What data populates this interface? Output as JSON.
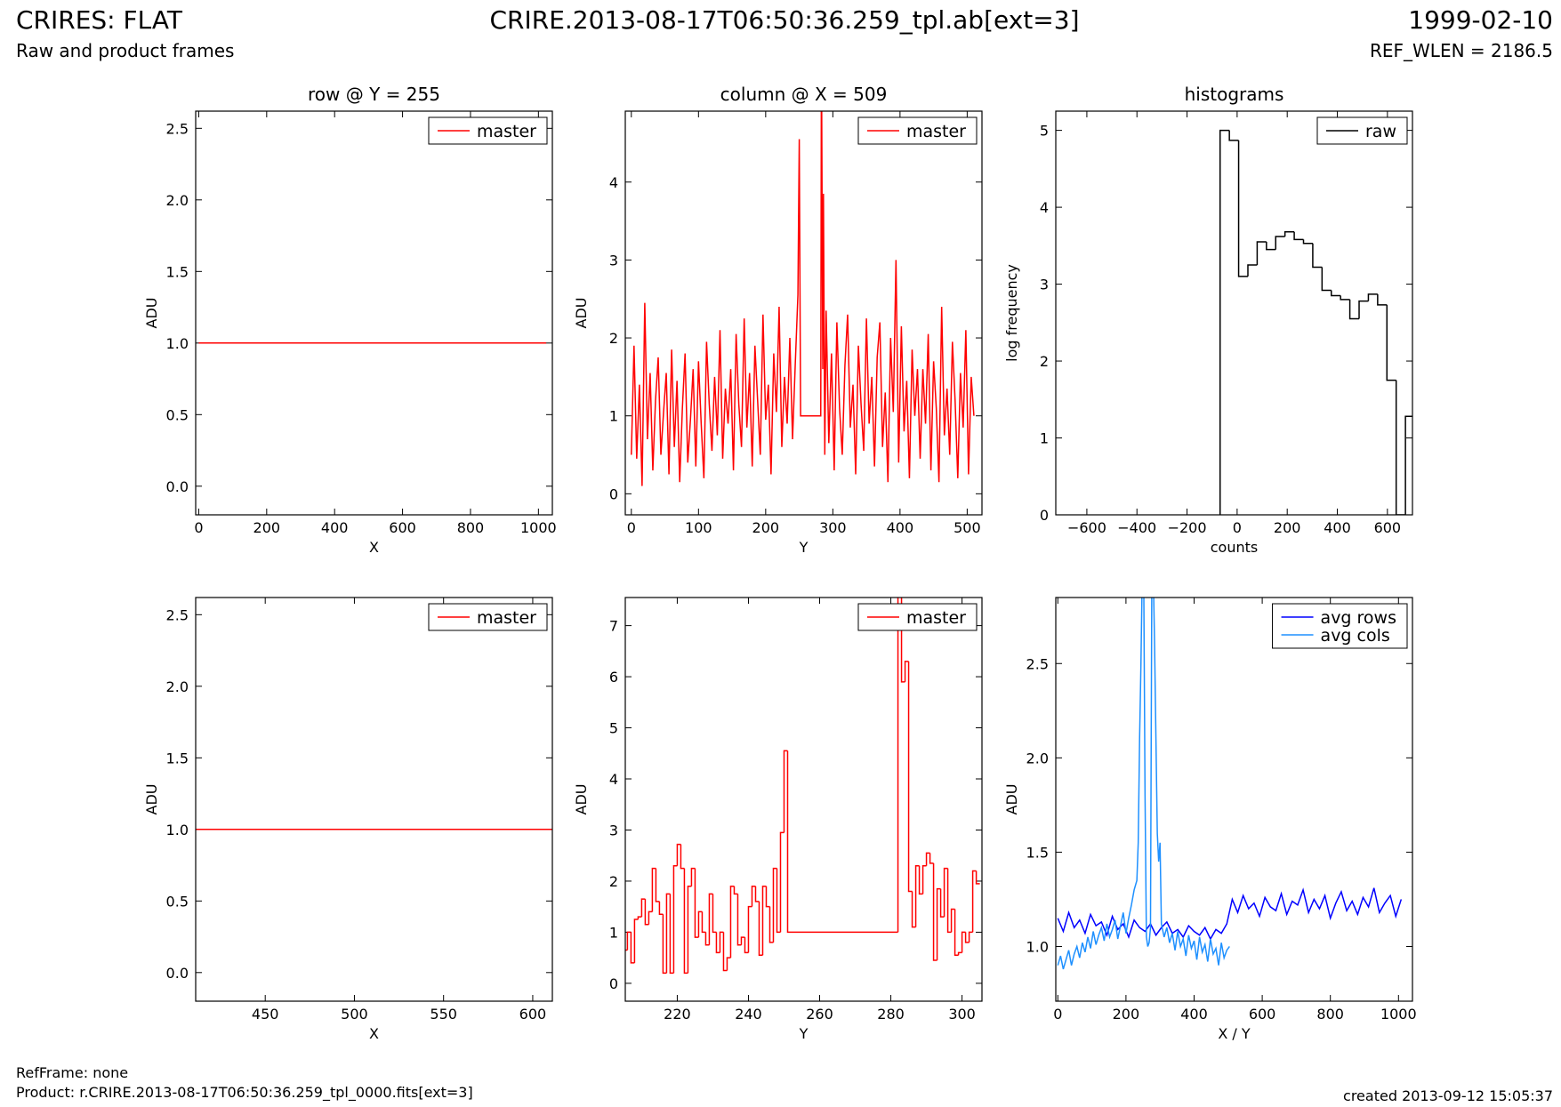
{
  "header": {
    "title": "CRIRES: FLAT",
    "subtitle": "Raw and product frames",
    "file": "CRIRE.2013-08-17T06:50:36.259_tpl.ab[ext=3]",
    "date": "1999-02-10",
    "ref_wlen": "REF_WLEN = 2186.5"
  },
  "footer": {
    "ref_frame": "RefFrame: none",
    "product": "Product: r.CRIRE.2013-08-17T06:50:36.259_tpl_0000.fits[ext=3]",
    "created": "created 2013-09-12 15:05:37"
  },
  "chart_data": [
    {
      "type": "line",
      "title": "row @ Y = 255",
      "xlabel": "X",
      "ylabel": "ADU",
      "legend": "upper right",
      "xlim": [
        -9,
        1041
      ],
      "ylim": [
        -0.2,
        2.62
      ],
      "xticks": [
        0,
        200,
        400,
        600,
        800,
        1000
      ],
      "yticks": [
        {
          "value": 0,
          "label": "0.0"
        },
        {
          "value": 0.5,
          "label": "0.5"
        },
        {
          "value": 1,
          "label": "1.0"
        },
        {
          "value": 1.5,
          "label": "1.5"
        },
        {
          "value": 2,
          "label": "2.0"
        },
        {
          "value": 2.5,
          "label": "2.5"
        }
      ],
      "series": [
        {
          "name": "master",
          "color": "#ff0000",
          "x": [
            0,
            1023
          ],
          "values": [
            1,
            1
          ]
        }
      ]
    },
    {
      "type": "line",
      "title": "column @ X = 509",
      "xlabel": "Y",
      "ylabel": "ADU",
      "legend": "upper right",
      "xlim": [
        -9,
        522
      ],
      "ylim": [
        -0.27,
        4.91
      ],
      "xticks": [
        0,
        100,
        200,
        300,
        400,
        500
      ],
      "yticks": [
        0,
        1,
        2,
        3,
        4
      ],
      "series": [
        {
          "name": "master",
          "color": "#ff0000",
          "x": [
            0,
            4,
            8,
            12,
            16,
            20,
            24,
            28,
            32,
            36,
            40,
            44,
            48,
            52,
            56,
            60,
            64,
            68,
            72,
            76,
            80,
            84,
            88,
            92,
            96,
            100,
            104,
            108,
            112,
            116,
            120,
            124,
            128,
            132,
            136,
            140,
            144,
            148,
            152,
            156,
            160,
            164,
            168,
            172,
            176,
            180,
            184,
            188,
            192,
            196,
            200,
            204,
            208,
            212,
            216,
            220,
            224,
            228,
            232,
            236,
            240,
            244,
            248,
            250,
            252,
            282,
            283,
            285,
            286,
            288,
            290,
            294,
            298,
            302,
            306,
            310,
            314,
            318,
            322,
            326,
            330,
            334,
            338,
            342,
            346,
            350,
            354,
            358,
            362,
            366,
            370,
            374,
            378,
            382,
            386,
            390,
            394,
            398,
            402,
            406,
            410,
            414,
            418,
            422,
            426,
            430,
            434,
            438,
            442,
            446,
            450,
            454,
            458,
            462,
            466,
            470,
            474,
            478,
            482,
            486,
            490,
            494,
            498,
            502,
            506,
            510
          ],
          "values": [
            0.5,
            1.9,
            0.45,
            1.4,
            0.1,
            2.45,
            0.7,
            1.55,
            0.3,
            1.2,
            1.75,
            0.5,
            1.05,
            1.55,
            0.25,
            1.85,
            0.6,
            1.45,
            0.15,
            1.1,
            1.8,
            0.4,
            0.95,
            1.6,
            0.35,
            1.7,
            0.9,
            0.2,
            1.95,
            1.15,
            0.55,
            1.5,
            0.75,
            2.1,
            0.45,
            1.35,
            0.9,
            1.6,
            0.3,
            2.05,
            1.15,
            0.6,
            2.25,
            0.85,
            1.55,
            0.35,
            1.9,
            1.2,
            0.5,
            2.3,
            0.95,
            1.4,
            0.25,
            1.8,
            1.05,
            2.4,
            0.6,
            1.5,
            0.9,
            2.0,
            0.7,
            1.65,
            2.55,
            4.55,
            1.0,
            1.0,
            5.8,
            1.6,
            3.85,
            0.5,
            2.35,
            0.65,
            1.8,
            0.3,
            2.2,
            1.1,
            0.5,
            1.65,
            2.3,
            0.85,
            1.4,
            0.25,
            1.9,
            1.15,
            0.55,
            2.25,
            0.9,
            1.5,
            0.35,
            1.75,
            2.2,
            0.6,
            1.3,
            0.15,
            2.0,
            1.05,
            3.0,
            0.4,
            2.15,
            0.8,
            1.45,
            0.2,
            1.85,
            1.0,
            1.6,
            0.45,
            1.6,
            0.9,
            2.05,
            0.3,
            1.7,
            1.1,
            0.15,
            2.4,
            0.75,
            1.35,
            0.5,
            1.95,
            1.2,
            0.2,
            1.55,
            0.85,
            2.1,
            0.25,
            1.5,
            1.0
          ]
        }
      ]
    },
    {
      "type": "histogram",
      "title": "histograms",
      "xlabel": "counts",
      "ylabel": "log frequency",
      "legend": "upper right",
      "xlim": [
        -724,
        700
      ],
      "ylim": [
        0,
        5.25
      ],
      "xticks": [
        {
          "value": -600,
          "label": "−600"
        },
        {
          "value": -400,
          "label": "−400"
        },
        {
          "value": -200,
          "label": "−200"
        },
        0,
        200,
        400,
        600
      ],
      "yticks": [
        0,
        1,
        2,
        3,
        4,
        5
      ],
      "series": [
        {
          "name": "raw",
          "color": "#000000",
          "bins": [
            -68,
            -31,
            6,
            43,
            80,
            117,
            154,
            191,
            228,
            265,
            302,
            339,
            376,
            413,
            450,
            487,
            524,
            561,
            598,
            635,
            672,
            709
          ],
          "values": [
            5.0,
            4.87,
            3.1,
            3.25,
            3.55,
            3.45,
            3.62,
            3.68,
            3.58,
            3.53,
            3.22,
            2.92,
            2.85,
            2.8,
            2.55,
            2.78,
            2.87,
            2.73,
            1.75,
            0,
            1.28
          ]
        }
      ]
    },
    {
      "type": "line",
      "xlabel": "X",
      "ylabel": "ADU",
      "legend": "upper right",
      "xlim": [
        411,
        611
      ],
      "ylim": [
        -0.2,
        2.62
      ],
      "xticks": [
        450,
        500,
        550,
        600
      ],
      "yticks": [
        {
          "value": 0,
          "label": "0.0"
        },
        {
          "value": 0.5,
          "label": "0.5"
        },
        {
          "value": 1,
          "label": "1.0"
        },
        {
          "value": 1.5,
          "label": "1.5"
        },
        {
          "value": 2,
          "label": "2.0"
        },
        {
          "value": 2.5,
          "label": "2.5"
        }
      ],
      "series": [
        {
          "name": "master",
          "color": "#ff0000",
          "x": [
            411,
            611
          ],
          "values": [
            1,
            1
          ]
        }
      ]
    },
    {
      "type": "line",
      "drawstyle": "steps",
      "xlabel": "Y",
      "ylabel": "ADU",
      "legend": "upper right",
      "xlim": [
        205.4,
        305.6
      ],
      "ylim": [
        -0.35,
        7.55
      ],
      "xticks": [
        220,
        240,
        260,
        280,
        300
      ],
      "yticks": [
        0,
        1,
        2,
        3,
        4,
        5,
        6,
        7
      ],
      "series": [
        {
          "name": "master",
          "color": "#ff0000",
          "x": [
            205,
            206,
            207,
            208,
            209,
            210,
            211,
            212,
            213,
            214,
            215,
            216,
            217,
            218,
            219,
            220,
            221,
            222,
            223,
            224,
            225,
            226,
            227,
            228,
            229,
            230,
            231,
            232,
            233,
            234,
            235,
            236,
            237,
            238,
            239,
            240,
            241,
            242,
            243,
            244,
            245,
            246,
            247,
            248,
            249,
            250,
            251,
            252,
            282,
            283,
            284,
            285,
            286,
            287,
            288,
            289,
            290,
            291,
            292,
            293,
            294,
            295,
            296,
            297,
            298,
            299,
            300,
            301,
            302,
            303,
            304,
            305
          ],
          "values": [
            1.95,
            0.65,
            1.0,
            0.4,
            1.25,
            1.3,
            1.65,
            1.15,
            1.4,
            2.25,
            1.6,
            1.35,
            0.2,
            1.75,
            0.2,
            2.3,
            2.72,
            2.25,
            0.2,
            1.9,
            2.25,
            0.9,
            1.4,
            1.0,
            0.75,
            1.75,
            1.0,
            0.6,
            1.0,
            0.25,
            0.5,
            1.9,
            1.75,
            0.75,
            0.9,
            0.6,
            1.5,
            1.9,
            1.6,
            0.55,
            1.9,
            1.5,
            0.8,
            2.25,
            1.0,
            2.95,
            4.55,
            1.0,
            1.0,
            7.6,
            5.9,
            6.3,
            1.8,
            1.1,
            2.3,
            1.75,
            2.3,
            2.55,
            2.35,
            0.45,
            1.85,
            1.3,
            2.25,
            1.0,
            1.45,
            0.55,
            0.6,
            1.0,
            0.8,
            1.0,
            2.2,
            1.95
          ]
        }
      ]
    },
    {
      "type": "line",
      "xlabel": "X / Y",
      "ylabel": "ADU",
      "legend": "upper right",
      "xlim": [
        -6,
        1041
      ],
      "ylim": [
        0.71,
        2.85
      ],
      "xticks": [
        0,
        200,
        400,
        600,
        800,
        1000
      ],
      "yticks": [
        {
          "value": 1,
          "label": "1.0"
        },
        {
          "value": 1.5,
          "label": "1.5"
        },
        {
          "value": 2,
          "label": "2.0"
        },
        {
          "value": 2.5,
          "label": "2.5"
        }
      ],
      "series": [
        {
          "name": "avg rows",
          "color": "#0000ff",
          "x": [
            0,
            16,
            32,
            48,
            64,
            80,
            96,
            112,
            128,
            144,
            160,
            176,
            192,
            208,
            224,
            240,
            256,
            272,
            288,
            304,
            320,
            336,
            352,
            368,
            384,
            400,
            416,
            432,
            448,
            464,
            480,
            496,
            512,
            528,
            544,
            560,
            576,
            592,
            608,
            624,
            640,
            656,
            672,
            688,
            704,
            720,
            736,
            752,
            768,
            784,
            800,
            816,
            832,
            848,
            864,
            880,
            896,
            912,
            928,
            944,
            960,
            976,
            992,
            1008
          ],
          "values": [
            1.15,
            1.08,
            1.18,
            1.1,
            1.14,
            1.07,
            1.17,
            1.11,
            1.13,
            1.06,
            1.16,
            1.09,
            1.12,
            1.05,
            1.14,
            1.1,
            1.08,
            1.12,
            1.06,
            1.1,
            1.13,
            1.07,
            1.09,
            1.05,
            1.11,
            1.08,
            1.06,
            1.1,
            1.04,
            1.09,
            1.07,
            1.12,
            1.25,
            1.18,
            1.27,
            1.2,
            1.23,
            1.16,
            1.26,
            1.21,
            1.19,
            1.28,
            1.17,
            1.24,
            1.22,
            1.3,
            1.18,
            1.25,
            1.2,
            1.27,
            1.15,
            1.23,
            1.29,
            1.19,
            1.24,
            1.17,
            1.26,
            1.21,
            1.31,
            1.18,
            1.23,
            1.27,
            1.16,
            1.25
          ]
        },
        {
          "name": "avg cols",
          "color": "#1e90ff",
          "x": [
            0,
            8,
            16,
            24,
            32,
            40,
            48,
            56,
            64,
            72,
            80,
            88,
            96,
            104,
            112,
            120,
            128,
            136,
            144,
            152,
            160,
            168,
            176,
            184,
            192,
            200,
            208,
            216,
            224,
            232,
            236,
            240,
            244,
            248,
            252,
            256,
            260,
            264,
            268,
            272,
            276,
            280,
            284,
            288,
            292,
            296,
            300,
            304,
            312,
            320,
            328,
            336,
            344,
            352,
            360,
            368,
            376,
            384,
            392,
            400,
            408,
            416,
            424,
            432,
            440,
            448,
            456,
            464,
            472,
            480,
            488,
            496,
            504
          ],
          "values": [
            0.9,
            0.95,
            0.88,
            0.93,
            0.98,
            0.9,
            0.96,
            1.0,
            0.94,
            1.02,
            0.97,
            1.05,
            0.99,
            1.08,
            1.01,
            1.06,
            1.1,
            1.03,
            1.12,
            1.05,
            1.09,
            1.14,
            1.04,
            1.11,
            1.18,
            1.07,
            1.15,
            1.22,
            1.3,
            1.35,
            1.55,
            2.1,
            2.5,
            3.0,
            3.0,
            1.8,
            1.05,
            1.0,
            1.02,
            1.1,
            3.0,
            3.0,
            2.6,
            2.1,
            1.6,
            1.45,
            1.55,
            1.12,
            1.05,
            1.1,
            1.02,
            1.07,
            0.98,
            1.08,
            1.0,
            1.04,
            0.95,
            1.06,
            0.99,
            1.03,
            0.93,
            1.05,
            0.97,
            1.01,
            0.92,
            1.04,
            0.96,
            0.99,
            0.9,
            1.02,
            0.94,
            0.98,
            1.0
          ]
        }
      ]
    }
  ]
}
